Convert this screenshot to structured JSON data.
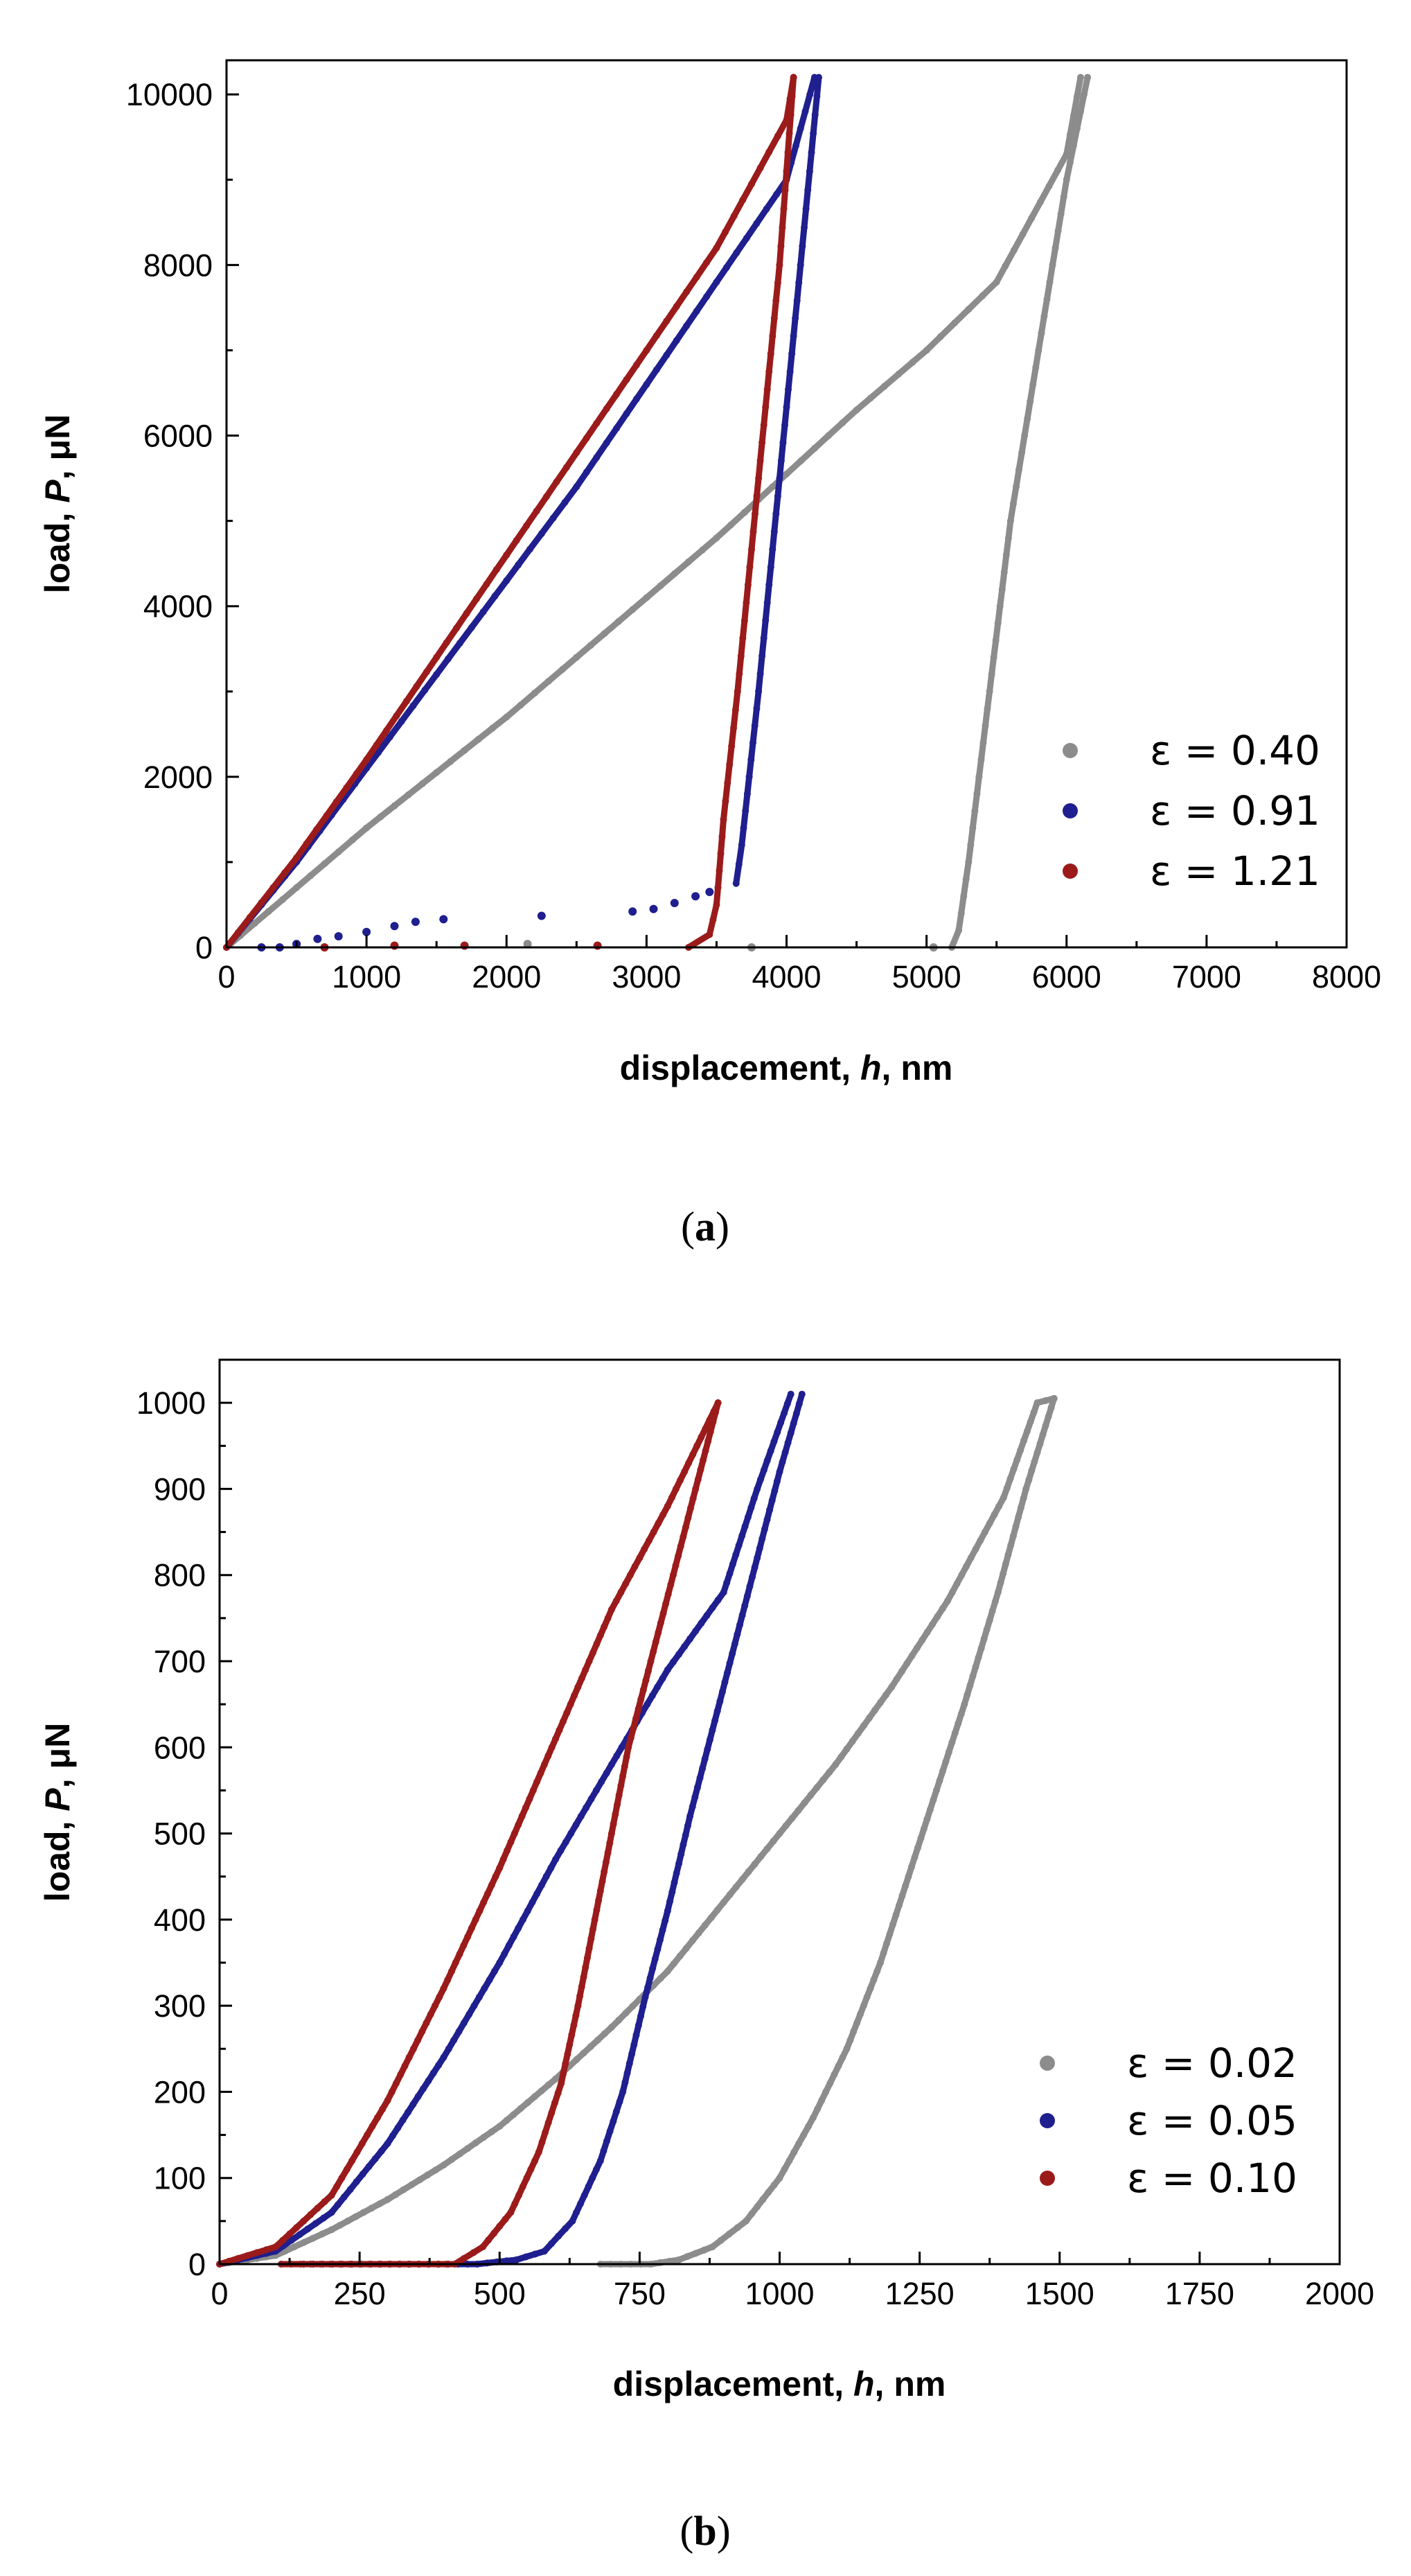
{
  "chart_data": [
    {
      "type": "scatter",
      "panel": "(a)",
      "panel_letter": "a",
      "xlabel": {
        "pre": "displacement, ",
        "italic": "h",
        "post": ", nm"
      },
      "ylabel": {
        "pre": "load, ",
        "italic": "P",
        "post": ", μN"
      },
      "xlim": [
        0,
        8000
      ],
      "ylim": [
        0,
        10400
      ],
      "x_ticks": [
        0,
        1000,
        2000,
        3000,
        4000,
        5000,
        6000,
        7000,
        8000
      ],
      "x_tick_labels": [
        "0",
        "1000",
        "2000",
        "3000",
        "4000",
        "5000",
        "6000",
        "7000",
        "8000"
      ],
      "y_ticks": [
        0,
        2000,
        4000,
        6000,
        8000,
        10000
      ],
      "y_tick_labels": [
        "0",
        "2000",
        "4000",
        "6000",
        "8000",
        "10000"
      ],
      "legend_position": "bottom-right",
      "series": [
        {
          "name": "ε = 0.40",
          "color": "#8c8c8c",
          "loading": [
            [
              0,
              0
            ],
            [
              500,
              700
            ],
            [
              1000,
              1400
            ],
            [
              1500,
              2050
            ],
            [
              2000,
              2700
            ],
            [
              2500,
              3400
            ],
            [
              3000,
              4100
            ],
            [
              3500,
              4800
            ],
            [
              4000,
              5550
            ],
            [
              4500,
              6300
            ],
            [
              5000,
              7000
            ],
            [
              5500,
              7800
            ],
            [
              6000,
              9300
            ],
            [
              6100,
              10200
            ]
          ],
          "unloading": [
            [
              6150,
              10200
            ],
            [
              6000,
              9000
            ],
            [
              5800,
              7000
            ],
            [
              5600,
              5000
            ],
            [
              5450,
              3000
            ],
            [
              5300,
              1000
            ],
            [
              5230,
              200
            ],
            [
              5180,
              0
            ]
          ],
          "sparse": [
            [
              2150,
              40
            ],
            [
              3750,
              0
            ],
            [
              5050,
              0
            ]
          ]
        },
        {
          "name": "ε = 0.91",
          "color": "#1f1f8f",
          "loading": [
            [
              0,
              0
            ],
            [
              500,
              1000
            ],
            [
              1000,
              2100
            ],
            [
              1500,
              3200
            ],
            [
              2000,
              4300
            ],
            [
              2500,
              5400
            ],
            [
              3000,
              6600
            ],
            [
              3500,
              7800
            ],
            [
              4000,
              9000
            ],
            [
              4200,
              10200
            ]
          ],
          "unloading": [
            [
              4230,
              10200
            ],
            [
              4100,
              8000
            ],
            [
              3950,
              5500
            ],
            [
              3800,
              3000
            ],
            [
              3680,
              1200
            ],
            [
              3640,
              750
            ]
          ],
          "sparse": [
            [
              250,
              0
            ],
            [
              380,
              0
            ],
            [
              500,
              40
            ],
            [
              650,
              100
            ],
            [
              800,
              130
            ],
            [
              1000,
              180
            ],
            [
              1200,
              250
            ],
            [
              1350,
              300
            ],
            [
              1550,
              330
            ],
            [
              2250,
              370
            ],
            [
              2900,
              420
            ],
            [
              3050,
              450
            ],
            [
              3200,
              520
            ],
            [
              3350,
              600
            ],
            [
              3450,
              650
            ]
          ]
        },
        {
          "name": "ε = 1.21",
          "color": "#9b1b1b",
          "loading": [
            [
              0,
              0
            ],
            [
              500,
              1050
            ],
            [
              1000,
              2200
            ],
            [
              1500,
              3400
            ],
            [
              2000,
              4600
            ],
            [
              2500,
              5800
            ],
            [
              3000,
              7000
            ],
            [
              3500,
              8200
            ],
            [
              4000,
              9700
            ],
            [
              4050,
              10200
            ]
          ],
          "unloading": [
            [
              4050,
              10200
            ],
            [
              3950,
              8000
            ],
            [
              3800,
              5500
            ],
            [
              3650,
              3000
            ],
            [
              3550,
              1500
            ],
            [
              3500,
              500
            ],
            [
              3450,
              150
            ],
            [
              3300,
              0
            ]
          ],
          "sparse": [
            [
              700,
              0
            ],
            [
              1200,
              20
            ],
            [
              1700,
              20
            ],
            [
              2650,
              20
            ]
          ]
        }
      ]
    },
    {
      "type": "scatter",
      "panel": "(b)",
      "panel_letter": "b",
      "xlabel": {
        "pre": "displacement, ",
        "italic": "h",
        "post": ", nm"
      },
      "ylabel": {
        "pre": "load, ",
        "italic": "P",
        "post": ", μN"
      },
      "xlim": [
        0,
        2000
      ],
      "ylim": [
        0,
        1050
      ],
      "x_ticks": [
        0,
        250,
        500,
        750,
        1000,
        1250,
        1500,
        1750,
        2000
      ],
      "x_tick_labels": [
        "0",
        "250",
        "500",
        "750",
        "1000",
        "1250",
        "1500",
        "1750",
        "2000"
      ],
      "y_ticks": [
        0,
        100,
        200,
        300,
        400,
        500,
        600,
        700,
        800,
        900,
        1000
      ],
      "y_tick_labels": [
        "0",
        "100",
        "200",
        "300",
        "400",
        "500",
        "600",
        "700",
        "800",
        "900",
        "1000"
      ],
      "legend_position": "bottom-right",
      "series": [
        {
          "name": "ε = 0.02",
          "color": "#8c8c8c",
          "loading": [
            [
              0,
              0
            ],
            [
              100,
              10
            ],
            [
              200,
              40
            ],
            [
              300,
              75
            ],
            [
              400,
              115
            ],
            [
              500,
              160
            ],
            [
              600,
              215
            ],
            [
              700,
              275
            ],
            [
              800,
              340
            ],
            [
              900,
              420
            ],
            [
              1000,
              500
            ],
            [
              1100,
              580
            ],
            [
              1200,
              670
            ],
            [
              1300,
              770
            ],
            [
              1400,
              890
            ],
            [
              1460,
              1000
            ],
            [
              1490,
              1005
            ]
          ],
          "unloading": [
            [
              1490,
              1005
            ],
            [
              1440,
              900
            ],
            [
              1390,
              780
            ],
            [
              1330,
              650
            ],
            [
              1280,
              550
            ],
            [
              1230,
              450
            ],
            [
              1180,
              350
            ],
            [
              1120,
              250
            ],
            [
              1060,
              170
            ],
            [
              1000,
              100
            ],
            [
              940,
              50
            ],
            [
              880,
              20
            ],
            [
              820,
              5
            ],
            [
              770,
              0
            ],
            [
              680,
              0
            ]
          ],
          "sparse": []
        },
        {
          "name": "ε = 0.05",
          "color": "#1f1f8f",
          "loading": [
            [
              0,
              0
            ],
            [
              100,
              15
            ],
            [
              200,
              60
            ],
            [
              300,
              140
            ],
            [
              400,
              240
            ],
            [
              500,
              350
            ],
            [
              600,
              470
            ],
            [
              700,
              580
            ],
            [
              800,
              690
            ],
            [
              900,
              780
            ],
            [
              960,
              900
            ],
            [
              1020,
              1010
            ]
          ],
          "unloading": [
            [
              1040,
              1010
            ],
            [
              1000,
              920
            ],
            [
              960,
              820
            ],
            [
              920,
              720
            ],
            [
              880,
              620
            ],
            [
              840,
              520
            ],
            [
              800,
              410
            ],
            [
              760,
              310
            ],
            [
              720,
              200
            ],
            [
              680,
              120
            ],
            [
              630,
              50
            ],
            [
              580,
              15
            ],
            [
              530,
              5
            ],
            [
              460,
              0
            ],
            [
              150,
              0
            ]
          ],
          "sparse": []
        },
        {
          "name": "ε = 0.10",
          "color": "#9b1b1b",
          "loading": [
            [
              0,
              0
            ],
            [
              100,
              20
            ],
            [
              200,
              80
            ],
            [
              300,
              190
            ],
            [
              400,
              320
            ],
            [
              500,
              460
            ],
            [
              600,
              610
            ],
            [
              700,
              760
            ],
            [
              800,
              880
            ],
            [
              890,
              1000
            ]
          ],
          "unloading": [
            [
              890,
              1000
            ],
            [
              850,
              900
            ],
            [
              810,
              800
            ],
            [
              770,
              700
            ],
            [
              730,
              600
            ],
            [
              700,
              500
            ],
            [
              670,
              400
            ],
            [
              640,
              300
            ],
            [
              610,
              210
            ],
            [
              570,
              130
            ],
            [
              520,
              60
            ],
            [
              470,
              20
            ],
            [
              420,
              0
            ],
            [
              390,
              0
            ],
            [
              110,
              0
            ]
          ],
          "sparse": []
        }
      ]
    }
  ]
}
